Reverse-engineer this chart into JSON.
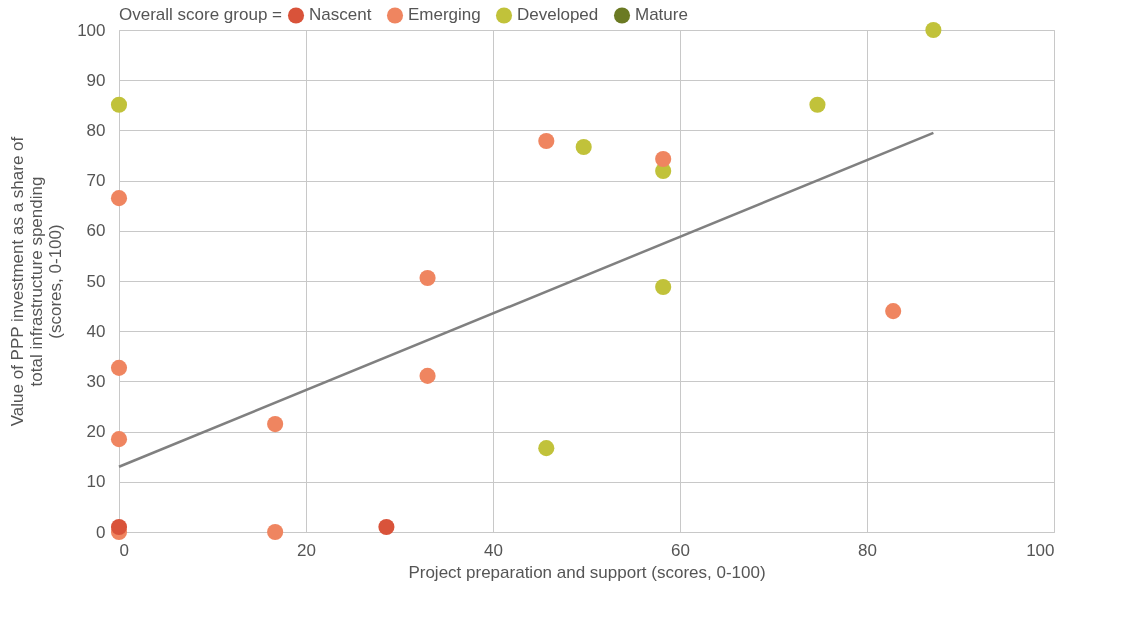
{
  "chart_data": {
    "type": "scatter",
    "xlabel": "Project preparation and support (scores, 0-100)",
    "ylabel": "Value of PPP investment as a share of\ntotal infrastructure spending\n(scores, 0-100)",
    "legend_title": "Overall score group =",
    "series": [
      {
        "name": "Nascent",
        "color": "#d9533a",
        "x": [
          0,
          28.6
        ],
        "values": [
          1,
          1
        ]
      },
      {
        "name": "Emerging",
        "color": "#ef8560",
        "x": [
          0,
          0,
          0,
          0,
          16.7,
          16.7,
          33,
          33,
          45.7,
          58.2,
          82.8
        ],
        "values": [
          66.5,
          32.7,
          18.5,
          0,
          21.5,
          0,
          50.6,
          31.1,
          77.9,
          74.3,
          44
        ]
      },
      {
        "name": "Developed",
        "color": "#c1c23a",
        "x": [
          0,
          45.7,
          49.7,
          58.2,
          58.2,
          74.7,
          87.1
        ],
        "values": [
          85.1,
          16.7,
          76.7,
          71.9,
          48.8,
          85.1,
          100
        ]
      },
      {
        "name": "Mature",
        "color": "#6b7a23"
      },
      {
        "type": "line",
        "color": "#808080",
        "marker": "none",
        "x": [
          0,
          87.1
        ],
        "values": [
          13,
          79.5
        ]
      }
    ],
    "xlim": [
      0,
      100
    ],
    "xticks": [
      0,
      20,
      40,
      60,
      80,
      100
    ],
    "ylim": [
      0,
      100
    ],
    "yticks": [
      0,
      10,
      20,
      30,
      40,
      50,
      60,
      70,
      80,
      90,
      100
    ],
    "grid": true,
    "legend": "top",
    "marker": "circle",
    "line_style": "solid"
  }
}
